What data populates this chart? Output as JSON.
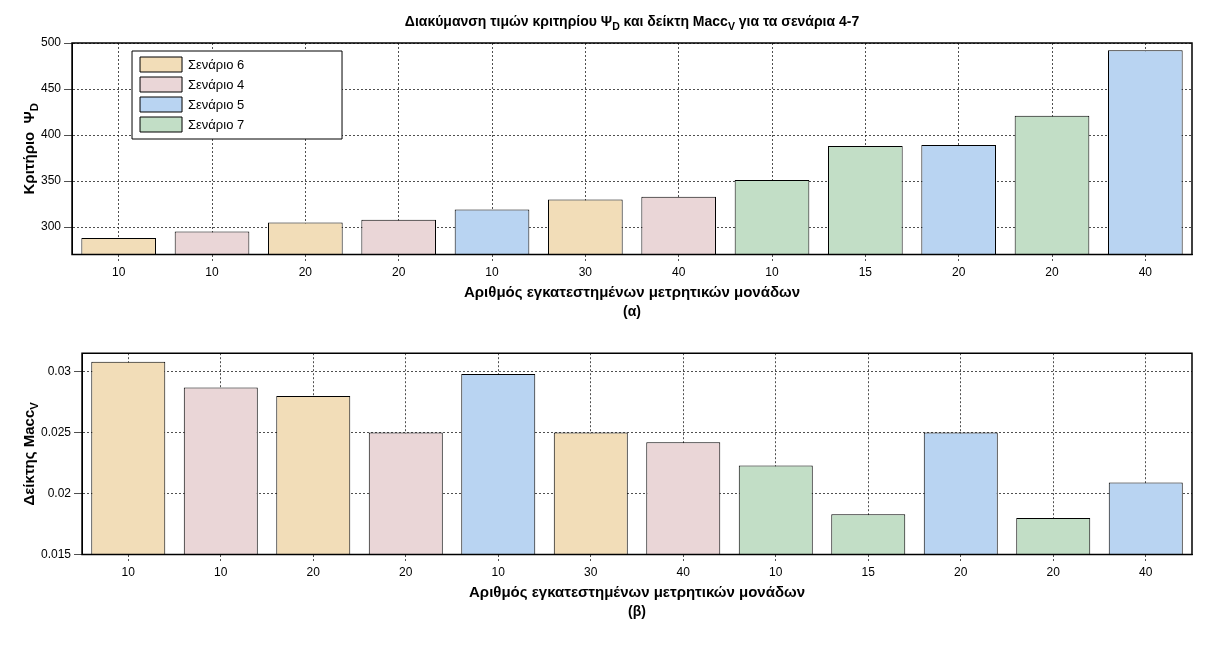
{
  "chart_data": [
    {
      "type": "bar",
      "title": "Διακύμανση τιμών κριτηρίου Ψ$_{D}$ και δείκτη Macc$_{V}$ για τα σενάρια 4-7",
      "xlabel": "Αριθμός εγκατεστημένων μετρητικών μονάδων",
      "ylabel": "Κριτήριο  Ψ$_{D}$",
      "annotations": [
        "(α)"
      ],
      "categories": [
        "10",
        "10",
        "20",
        "20",
        "10",
        "30",
        "40",
        "10",
        "15",
        "20",
        "20",
        "40"
      ],
      "series": [
        {
          "name": "Σενάριο 6",
          "color": "#f2ddb8",
          "values": [
            288,
            null,
            305,
            null,
            null,
            330,
            null,
            null,
            null,
            null,
            null,
            null
          ]
        },
        {
          "name": "Σενάριο 4",
          "color": "#ead6d7",
          "values": [
            null,
            295,
            null,
            308,
            null,
            null,
            333,
            null,
            null,
            null,
            null,
            null
          ]
        },
        {
          "name": "Σενάριο 5",
          "color": "#b9d4f2",
          "values": [
            null,
            null,
            null,
            null,
            319,
            null,
            null,
            null,
            null,
            389,
            null,
            492
          ]
        },
        {
          "name": "Σενάριο 7",
          "color": "#c2dec6",
          "values": [
            null,
            null,
            null,
            null,
            null,
            null,
            null,
            351,
            388,
            null,
            421,
            null
          ]
        }
      ],
      "ylim": [
        270,
        500
      ],
      "yticks": [
        300,
        350,
        400,
        450,
        500
      ],
      "grid": true,
      "legend": "top left"
    },
    {
      "type": "bar",
      "xlabel": "Αριθμός εγκατεστημένων μετρητικών μονάδων",
      "ylabel": "Δείκτης Macc$_{V}$",
      "annotations": [
        "(β)"
      ],
      "categories": [
        "10",
        "10",
        "20",
        "20",
        "10",
        "30",
        "40",
        "10",
        "15",
        "20",
        "20",
        "40"
      ],
      "series": [
        {
          "color": "#f2ddb8",
          "values": [
            0.0308,
            null,
            0.028,
            null,
            null,
            0.025,
            null,
            null,
            null,
            null,
            null,
            null
          ]
        },
        {
          "color": "#ead6d7",
          "values": [
            null,
            0.0287,
            null,
            0.025,
            null,
            null,
            0.0242,
            null,
            null,
            null,
            null,
            null
          ]
        },
        {
          "color": "#b9d4f2",
          "values": [
            null,
            null,
            null,
            null,
            0.0298,
            null,
            null,
            null,
            null,
            0.025,
            null,
            0.0209
          ]
        },
        {
          "color": "#c2dec6",
          "values": [
            null,
            null,
            null,
            null,
            null,
            null,
            null,
            0.0223,
            0.0183,
            null,
            0.018,
            null
          ]
        }
      ],
      "ylim": [
        0.015,
        0.0315
      ],
      "yticks": [
        0.015,
        0.02,
        0.025,
        0.03
      ],
      "grid": true
    }
  ]
}
